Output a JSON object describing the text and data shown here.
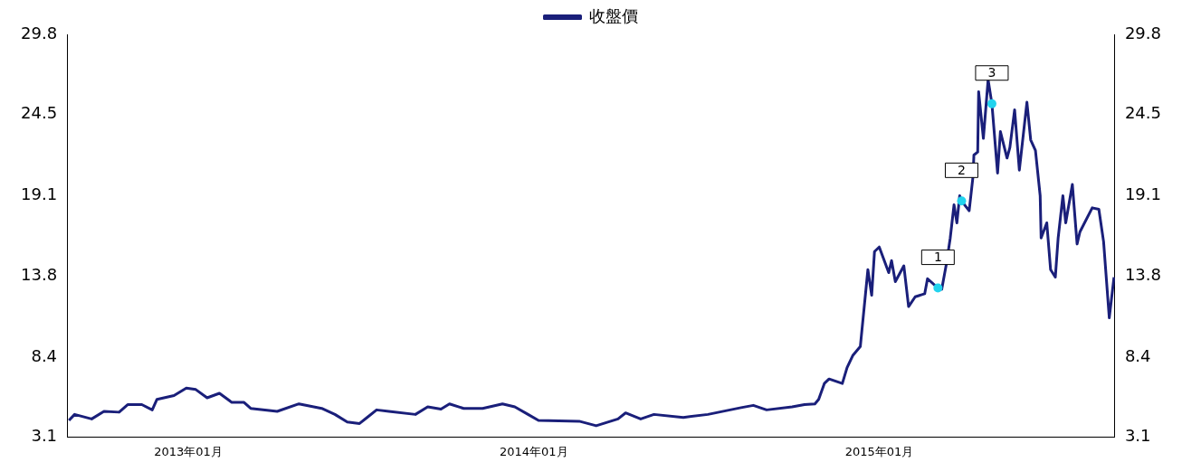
{
  "chart_data": {
    "type": "line",
    "legend": "top",
    "grid": false,
    "xlim": [
      "2012-08-26",
      "2015-09-07"
    ],
    "xticks": [
      {
        "value": "2013-01-01",
        "label": "2013年01月"
      },
      {
        "value": "2014-01-01",
        "label": "2014年01月"
      },
      {
        "value": "2015-01-01",
        "label": "2015年01月"
      }
    ],
    "ylim": [
      3.1,
      29.8
    ],
    "yticks": [
      3.1,
      8.4,
      13.8,
      19.1,
      24.5,
      29.8
    ],
    "y2lim": [
      3.1,
      29.8
    ],
    "y2ticks": [
      3.1,
      8.4,
      13.8,
      19.1,
      24.5,
      29.8
    ],
    "annotations": [
      {
        "text": "1",
        "x": "2015-03-04",
        "y": 12.98
      },
      {
        "text": "2",
        "x": "2015-03-29",
        "y": 18.75
      },
      {
        "text": "3",
        "x": "2015-04-30",
        "y": 25.2
      }
    ],
    "series": [
      {
        "name": "收盤價",
        "color": "#1a1f7a",
        "marker": "none",
        "line_style": "solid",
        "x": [
          "2012-08-28",
          "2012-09-03",
          "2012-09-21",
          "2012-10-04",
          "2012-10-20",
          "2012-10-29",
          "2012-11-13",
          "2012-11-24",
          "2012-11-29",
          "2012-12-17",
          "2012-12-30",
          "2013-01-09",
          "2013-01-21",
          "2013-02-03",
          "2013-02-16",
          "2013-03-01",
          "2013-03-08",
          "2013-04-05",
          "2013-04-28",
          "2013-05-22",
          "2013-06-05",
          "2013-06-18",
          "2013-07-01",
          "2013-07-09",
          "2013-07-19",
          "2013-08-01",
          "2013-08-29",
          "2013-09-11",
          "2013-09-25",
          "2013-10-04",
          "2013-10-19",
          "2013-11-08",
          "2013-11-29",
          "2013-12-12",
          "2013-12-26",
          "2014-01-06",
          "2014-02-18",
          "2014-03-08",
          "2014-03-31",
          "2014-04-08",
          "2014-04-24",
          "2014-05-08",
          "2014-06-08",
          "2014-07-04",
          "2014-08-08",
          "2014-08-21",
          "2014-09-04",
          "2014-10-01",
          "2014-10-14",
          "2014-10-25",
          "2014-10-29",
          "2014-11-04",
          "2014-11-09",
          "2014-11-23",
          "2014-11-28",
          "2014-12-04",
          "2014-12-12",
          "2014-12-20",
          "2014-12-24",
          "2014-12-27",
          "2015-01-01",
          "2015-01-11",
          "2015-01-14",
          "2015-01-18",
          "2015-01-27",
          "2015-02-01",
          "2015-02-08",
          "2015-02-18",
          "2015-02-21",
          "2015-03-04",
          "2015-03-08",
          "2015-03-13",
          "2015-03-17",
          "2015-03-21",
          "2015-03-24",
          "2015-03-27",
          "2015-03-29",
          "2015-04-06",
          "2015-04-10",
          "2015-04-11",
          "2015-04-15",
          "2015-04-16",
          "2015-04-21",
          "2015-04-26",
          "2015-04-30",
          "2015-05-06",
          "2015-05-09",
          "2015-05-16",
          "2015-05-19",
          "2015-05-24",
          "2015-05-29",
          "2015-06-06",
          "2015-06-10",
          "2015-06-15",
          "2015-06-20",
          "2015-06-21",
          "2015-06-27",
          "2015-07-01",
          "2015-07-06",
          "2015-07-09",
          "2015-07-14",
          "2015-07-17",
          "2015-07-24",
          "2015-07-29",
          "2015-08-01",
          "2015-08-14",
          "2015-08-21",
          "2015-08-26",
          "2015-09-01",
          "2015-09-06"
        ],
        "values": [
          4.2,
          4.6,
          4.3,
          4.8,
          4.75,
          5.25,
          5.25,
          4.9,
          5.6,
          5.85,
          6.35,
          6.25,
          5.7,
          6.0,
          5.4,
          5.4,
          5.0,
          4.8,
          5.3,
          5.0,
          4.6,
          4.1,
          4.0,
          4.4,
          4.9,
          4.8,
          4.6,
          5.1,
          4.95,
          5.3,
          5.0,
          5.0,
          5.3,
          5.1,
          4.6,
          4.2,
          4.15,
          3.85,
          4.3,
          4.7,
          4.3,
          4.6,
          4.4,
          4.6,
          5.05,
          5.2,
          4.9,
          5.1,
          5.25,
          5.3,
          5.6,
          6.65,
          6.95,
          6.65,
          7.7,
          8.5,
          9.1,
          14.2,
          12.5,
          15.4,
          15.7,
          14.0,
          14.8,
          13.4,
          14.45,
          11.75,
          12.4,
          12.6,
          13.6,
          12.98,
          12.9,
          14.6,
          16.3,
          18.5,
          17.3,
          19.1,
          18.75,
          18.1,
          20.35,
          21.8,
          22.0,
          26.0,
          22.9,
          26.8,
          25.2,
          20.6,
          23.35,
          21.6,
          22.3,
          24.8,
          20.8,
          25.3,
          22.8,
          22.1,
          19.1,
          16.3,
          17.3,
          14.2,
          13.7,
          16.3,
          19.1,
          17.3,
          19.85,
          15.9,
          16.7,
          18.3,
          18.2,
          16.05,
          11.0,
          13.7
        ]
      },
      {
        "type": "scatter",
        "color": "#22d3ee",
        "marker": "circle",
        "x": [
          "2015-03-04",
          "2015-03-29",
          "2015-04-30"
        ],
        "values": [
          12.98,
          18.75,
          25.2
        ]
      }
    ]
  }
}
